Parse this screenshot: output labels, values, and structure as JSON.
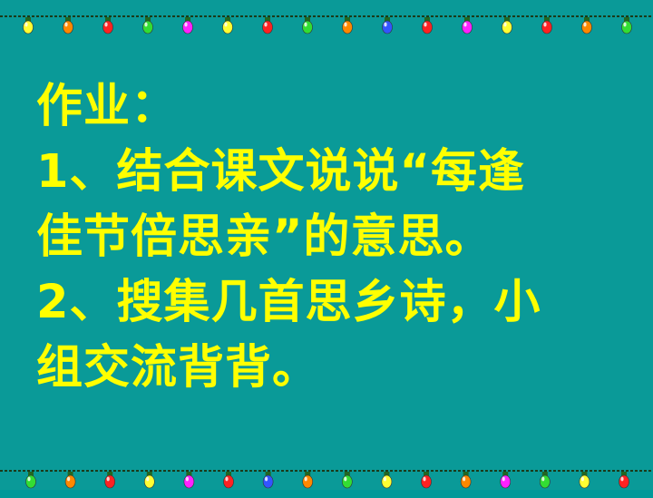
{
  "slide": {
    "background_color": "#0A9A98",
    "text_color": "#FFFF00",
    "lines": [
      "作业：",
      "1、结合课文说说“每逢",
      "佳节倍思亲”的意思。",
      "2、搜集几首思乡诗，小",
      "组交流背背。"
    ]
  },
  "decorations": {
    "top_border": "string-of-lights",
    "bottom_border": "string-of-lights",
    "bulb_colors": [
      "#FFFF33",
      "#FF8800",
      "#FF2222",
      "#33DD33",
      "#FF22FF",
      "#3355FF"
    ]
  }
}
